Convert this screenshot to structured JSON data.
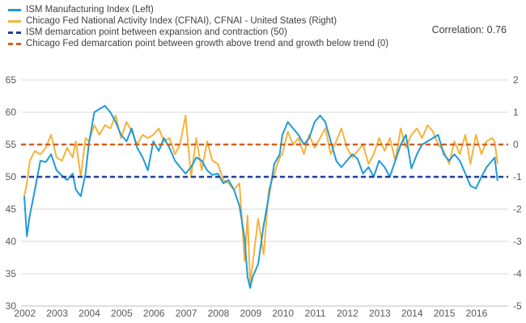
{
  "legend": [
    {
      "label": "ISM Manufacturing Index  (Left)",
      "color": "#1f9bd7",
      "style": "solid"
    },
    {
      "label": "Chicago Fed National Activity Index (CFNAI), CFNAI - United States  (Right)",
      "color": "#f5b33b",
      "style": "solid"
    },
    {
      "label": "ISM demarcation point between expansion and contraction (50)",
      "color": "#203f99",
      "style": "dashed"
    },
    {
      "label": "Chicago Fed demarcation point between growth above trend and growth below trend (0)",
      "color": "#d1611f",
      "style": "dashed"
    }
  ],
  "annotation": "Correlation: 0.76",
  "chart_data": {
    "type": "line",
    "title": "",
    "xlabel": "",
    "ylabel_left": "",
    "ylabel_right": "",
    "x_tick_labels": [
      "2002",
      "2003",
      "2004",
      "2005",
      "2006",
      "2007",
      "2008",
      "2009",
      "2010",
      "2011",
      "2012",
      "2013",
      "2014",
      "2015",
      "2016"
    ],
    "y_left": {
      "min": 30,
      "max": 65,
      "ticks": [
        30,
        35,
        40,
        45,
        50,
        55,
        60,
        65
      ]
    },
    "y_right": {
      "min": -5,
      "max": 2,
      "ticks": [
        -5,
        -4,
        -3,
        -2,
        -1,
        0,
        1,
        2
      ]
    },
    "x_range": [
      2001.9,
      2017.0
    ],
    "grid": "horizontal",
    "legend_position": "top-left",
    "series": [
      {
        "name": "ISM Manufacturing Index  (Left)",
        "axis": "left",
        "color": "#1f9bd7",
        "points": [
          [
            2002.0,
            47.0
          ],
          [
            2002.08,
            40.8
          ],
          [
            2002.17,
            44.0
          ],
          [
            2002.33,
            48.0
          ],
          [
            2002.5,
            52.5
          ],
          [
            2002.67,
            52.3
          ],
          [
            2002.83,
            53.5
          ],
          [
            2003.0,
            51.0
          ],
          [
            2003.17,
            50.2
          ],
          [
            2003.33,
            49.5
          ],
          [
            2003.5,
            50.5
          ],
          [
            2003.6,
            48.0
          ],
          [
            2003.75,
            47.0
          ],
          [
            2003.9,
            50.5
          ],
          [
            2004.0,
            55.0
          ],
          [
            2004.17,
            60.0
          ],
          [
            2004.33,
            60.5
          ],
          [
            2004.5,
            61.0
          ],
          [
            2004.67,
            60.0
          ],
          [
            2004.83,
            58.5
          ],
          [
            2005.0,
            56.5
          ],
          [
            2005.17,
            55.5
          ],
          [
            2005.33,
            57.5
          ],
          [
            2005.5,
            54.5
          ],
          [
            2005.67,
            53.0
          ],
          [
            2005.83,
            51.0
          ],
          [
            2006.0,
            55.5
          ],
          [
            2006.17,
            54.0
          ],
          [
            2006.33,
            56.0
          ],
          [
            2006.5,
            54.5
          ],
          [
            2006.67,
            52.5
          ],
          [
            2006.83,
            51.5
          ],
          [
            2007.0,
            50.5
          ],
          [
            2007.17,
            51.5
          ],
          [
            2007.33,
            53.0
          ],
          [
            2007.5,
            52.5
          ],
          [
            2007.67,
            51.0
          ],
          [
            2007.83,
            50.3
          ],
          [
            2008.0,
            50.5
          ],
          [
            2008.17,
            49.0
          ],
          [
            2008.33,
            49.5
          ],
          [
            2008.5,
            48.0
          ],
          [
            2008.67,
            45.5
          ],
          [
            2008.83,
            40.5
          ],
          [
            2008.92,
            34.5
          ],
          [
            2009.0,
            32.8
          ],
          [
            2009.08,
            34.5
          ],
          [
            2009.25,
            36.5
          ],
          [
            2009.42,
            42.5
          ],
          [
            2009.58,
            47.0
          ],
          [
            2009.75,
            52.0
          ],
          [
            2009.92,
            53.5
          ],
          [
            2010.0,
            56.5
          ],
          [
            2010.17,
            58.5
          ],
          [
            2010.33,
            57.5
          ],
          [
            2010.5,
            56.5
          ],
          [
            2010.67,
            55.0
          ],
          [
            2010.83,
            56.0
          ],
          [
            2011.0,
            58.5
          ],
          [
            2011.17,
            59.5
          ],
          [
            2011.33,
            58.5
          ],
          [
            2011.5,
            55.5
          ],
          [
            2011.67,
            52.5
          ],
          [
            2011.83,
            51.5
          ],
          [
            2012.0,
            52.5
          ],
          [
            2012.17,
            53.5
          ],
          [
            2012.33,
            52.8
          ],
          [
            2012.5,
            50.5
          ],
          [
            2012.67,
            51.5
          ],
          [
            2012.83,
            50.0
          ],
          [
            2013.0,
            52.5
          ],
          [
            2013.17,
            51.5
          ],
          [
            2013.33,
            50.0
          ],
          [
            2013.5,
            52.5
          ],
          [
            2013.67,
            55.0
          ],
          [
            2013.83,
            56.5
          ],
          [
            2014.0,
            51.3
          ],
          [
            2014.17,
            53.5
          ],
          [
            2014.33,
            55.0
          ],
          [
            2014.5,
            55.5
          ],
          [
            2014.67,
            56.0
          ],
          [
            2014.83,
            56.5
          ],
          [
            2015.0,
            53.5
          ],
          [
            2015.17,
            52.5
          ],
          [
            2015.33,
            53.5
          ],
          [
            2015.5,
            52.5
          ],
          [
            2015.67,
            50.5
          ],
          [
            2015.83,
            48.6
          ],
          [
            2016.0,
            48.2
          ],
          [
            2016.17,
            50.0
          ],
          [
            2016.33,
            51.5
          ],
          [
            2016.5,
            52.5
          ],
          [
            2016.58,
            53.0
          ],
          [
            2016.67,
            49.4
          ]
        ]
      },
      {
        "name": "Chicago Fed National Activity Index (CFNAI), CFNAI - United States  (Right)",
        "axis": "right",
        "color": "#f5b33b",
        "points": [
          [
            2002.0,
            -1.6
          ],
          [
            2002.08,
            -1.2
          ],
          [
            2002.17,
            -0.5
          ],
          [
            2002.33,
            -0.2
          ],
          [
            2002.5,
            -0.3
          ],
          [
            2002.67,
            -0.1
          ],
          [
            2002.83,
            0.3
          ],
          [
            2003.0,
            -0.4
          ],
          [
            2003.17,
            -0.5
          ],
          [
            2003.33,
            -0.1
          ],
          [
            2003.5,
            -0.4
          ],
          [
            2003.6,
            0.1
          ],
          [
            2003.75,
            -1.0
          ],
          [
            2003.9,
            0.2
          ],
          [
            2004.0,
            0.1
          ],
          [
            2004.17,
            0.6
          ],
          [
            2004.33,
            0.3
          ],
          [
            2004.5,
            0.6
          ],
          [
            2004.67,
            0.5
          ],
          [
            2004.83,
            0.9
          ],
          [
            2005.0,
            0.2
          ],
          [
            2005.17,
            0.7
          ],
          [
            2005.33,
            0.4
          ],
          [
            2005.5,
            0.0
          ],
          [
            2005.67,
            0.3
          ],
          [
            2005.83,
            0.2
          ],
          [
            2006.0,
            0.3
          ],
          [
            2006.17,
            0.5
          ],
          [
            2006.33,
            0.1
          ],
          [
            2006.5,
            0.2
          ],
          [
            2006.67,
            -0.3
          ],
          [
            2006.83,
            0.0
          ],
          [
            2007.0,
            0.9
          ],
          [
            2007.17,
            -1.0
          ],
          [
            2007.33,
            0.2
          ],
          [
            2007.5,
            -0.8
          ],
          [
            2007.67,
            0.1
          ],
          [
            2007.83,
            -0.5
          ],
          [
            2008.0,
            -0.6
          ],
          [
            2008.17,
            -1.1
          ],
          [
            2008.33,
            -1.2
          ],
          [
            2008.5,
            -1.4
          ],
          [
            2008.67,
            -1.2
          ],
          [
            2008.83,
            -3.6
          ],
          [
            2008.92,
            -2.2
          ],
          [
            2009.0,
            -4.3
          ],
          [
            2009.08,
            -3.7
          ],
          [
            2009.25,
            -2.3
          ],
          [
            2009.42,
            -3.4
          ],
          [
            2009.58,
            -1.4
          ],
          [
            2009.75,
            -0.9
          ],
          [
            2009.92,
            -0.4
          ],
          [
            2010.0,
            -0.3
          ],
          [
            2010.17,
            0.4
          ],
          [
            2010.33,
            0.0
          ],
          [
            2010.5,
            0.2
          ],
          [
            2010.67,
            -0.3
          ],
          [
            2010.83,
            0.3
          ],
          [
            2011.0,
            -0.1
          ],
          [
            2011.17,
            0.2
          ],
          [
            2011.33,
            0.5
          ],
          [
            2011.5,
            -0.3
          ],
          [
            2011.67,
            0.1
          ],
          [
            2011.83,
            0.5
          ],
          [
            2012.0,
            -0.1
          ],
          [
            2012.17,
            -0.4
          ],
          [
            2012.33,
            -0.2
          ],
          [
            2012.5,
            0.0
          ],
          [
            2012.67,
            -0.6
          ],
          [
            2012.83,
            -0.3
          ],
          [
            2013.0,
            0.2
          ],
          [
            2013.17,
            -0.2
          ],
          [
            2013.33,
            0.2
          ],
          [
            2013.5,
            -0.5
          ],
          [
            2013.67,
            0.5
          ],
          [
            2013.83,
            -0.1
          ],
          [
            2014.0,
            0.3
          ],
          [
            2014.17,
            0.5
          ],
          [
            2014.33,
            0.2
          ],
          [
            2014.5,
            0.6
          ],
          [
            2014.67,
            0.4
          ],
          [
            2014.83,
            0.0
          ],
          [
            2015.0,
            -0.2
          ],
          [
            2015.17,
            -0.6
          ],
          [
            2015.33,
            0.1
          ],
          [
            2015.5,
            -0.3
          ],
          [
            2015.67,
            0.3
          ],
          [
            2015.83,
            -0.6
          ],
          [
            2016.0,
            0.3
          ],
          [
            2016.17,
            -0.3
          ],
          [
            2016.33,
            0.1
          ],
          [
            2016.5,
            0.2
          ],
          [
            2016.58,
            0.1
          ],
          [
            2016.67,
            -0.6
          ]
        ]
      },
      {
        "name": "ISM demarcation point between expansion and contraction (50)",
        "axis": "left",
        "color": "#203f99",
        "dashed": true,
        "points": [
          [
            2001.9,
            50
          ],
          [
            2017.0,
            50
          ]
        ]
      },
      {
        "name": "Chicago Fed demarcation point between growth above trend and growth below trend (0)",
        "axis": "right",
        "color": "#d1611f",
        "dashed": true,
        "points": [
          [
            2001.9,
            0
          ],
          [
            2017.0,
            0
          ]
        ]
      }
    ]
  }
}
